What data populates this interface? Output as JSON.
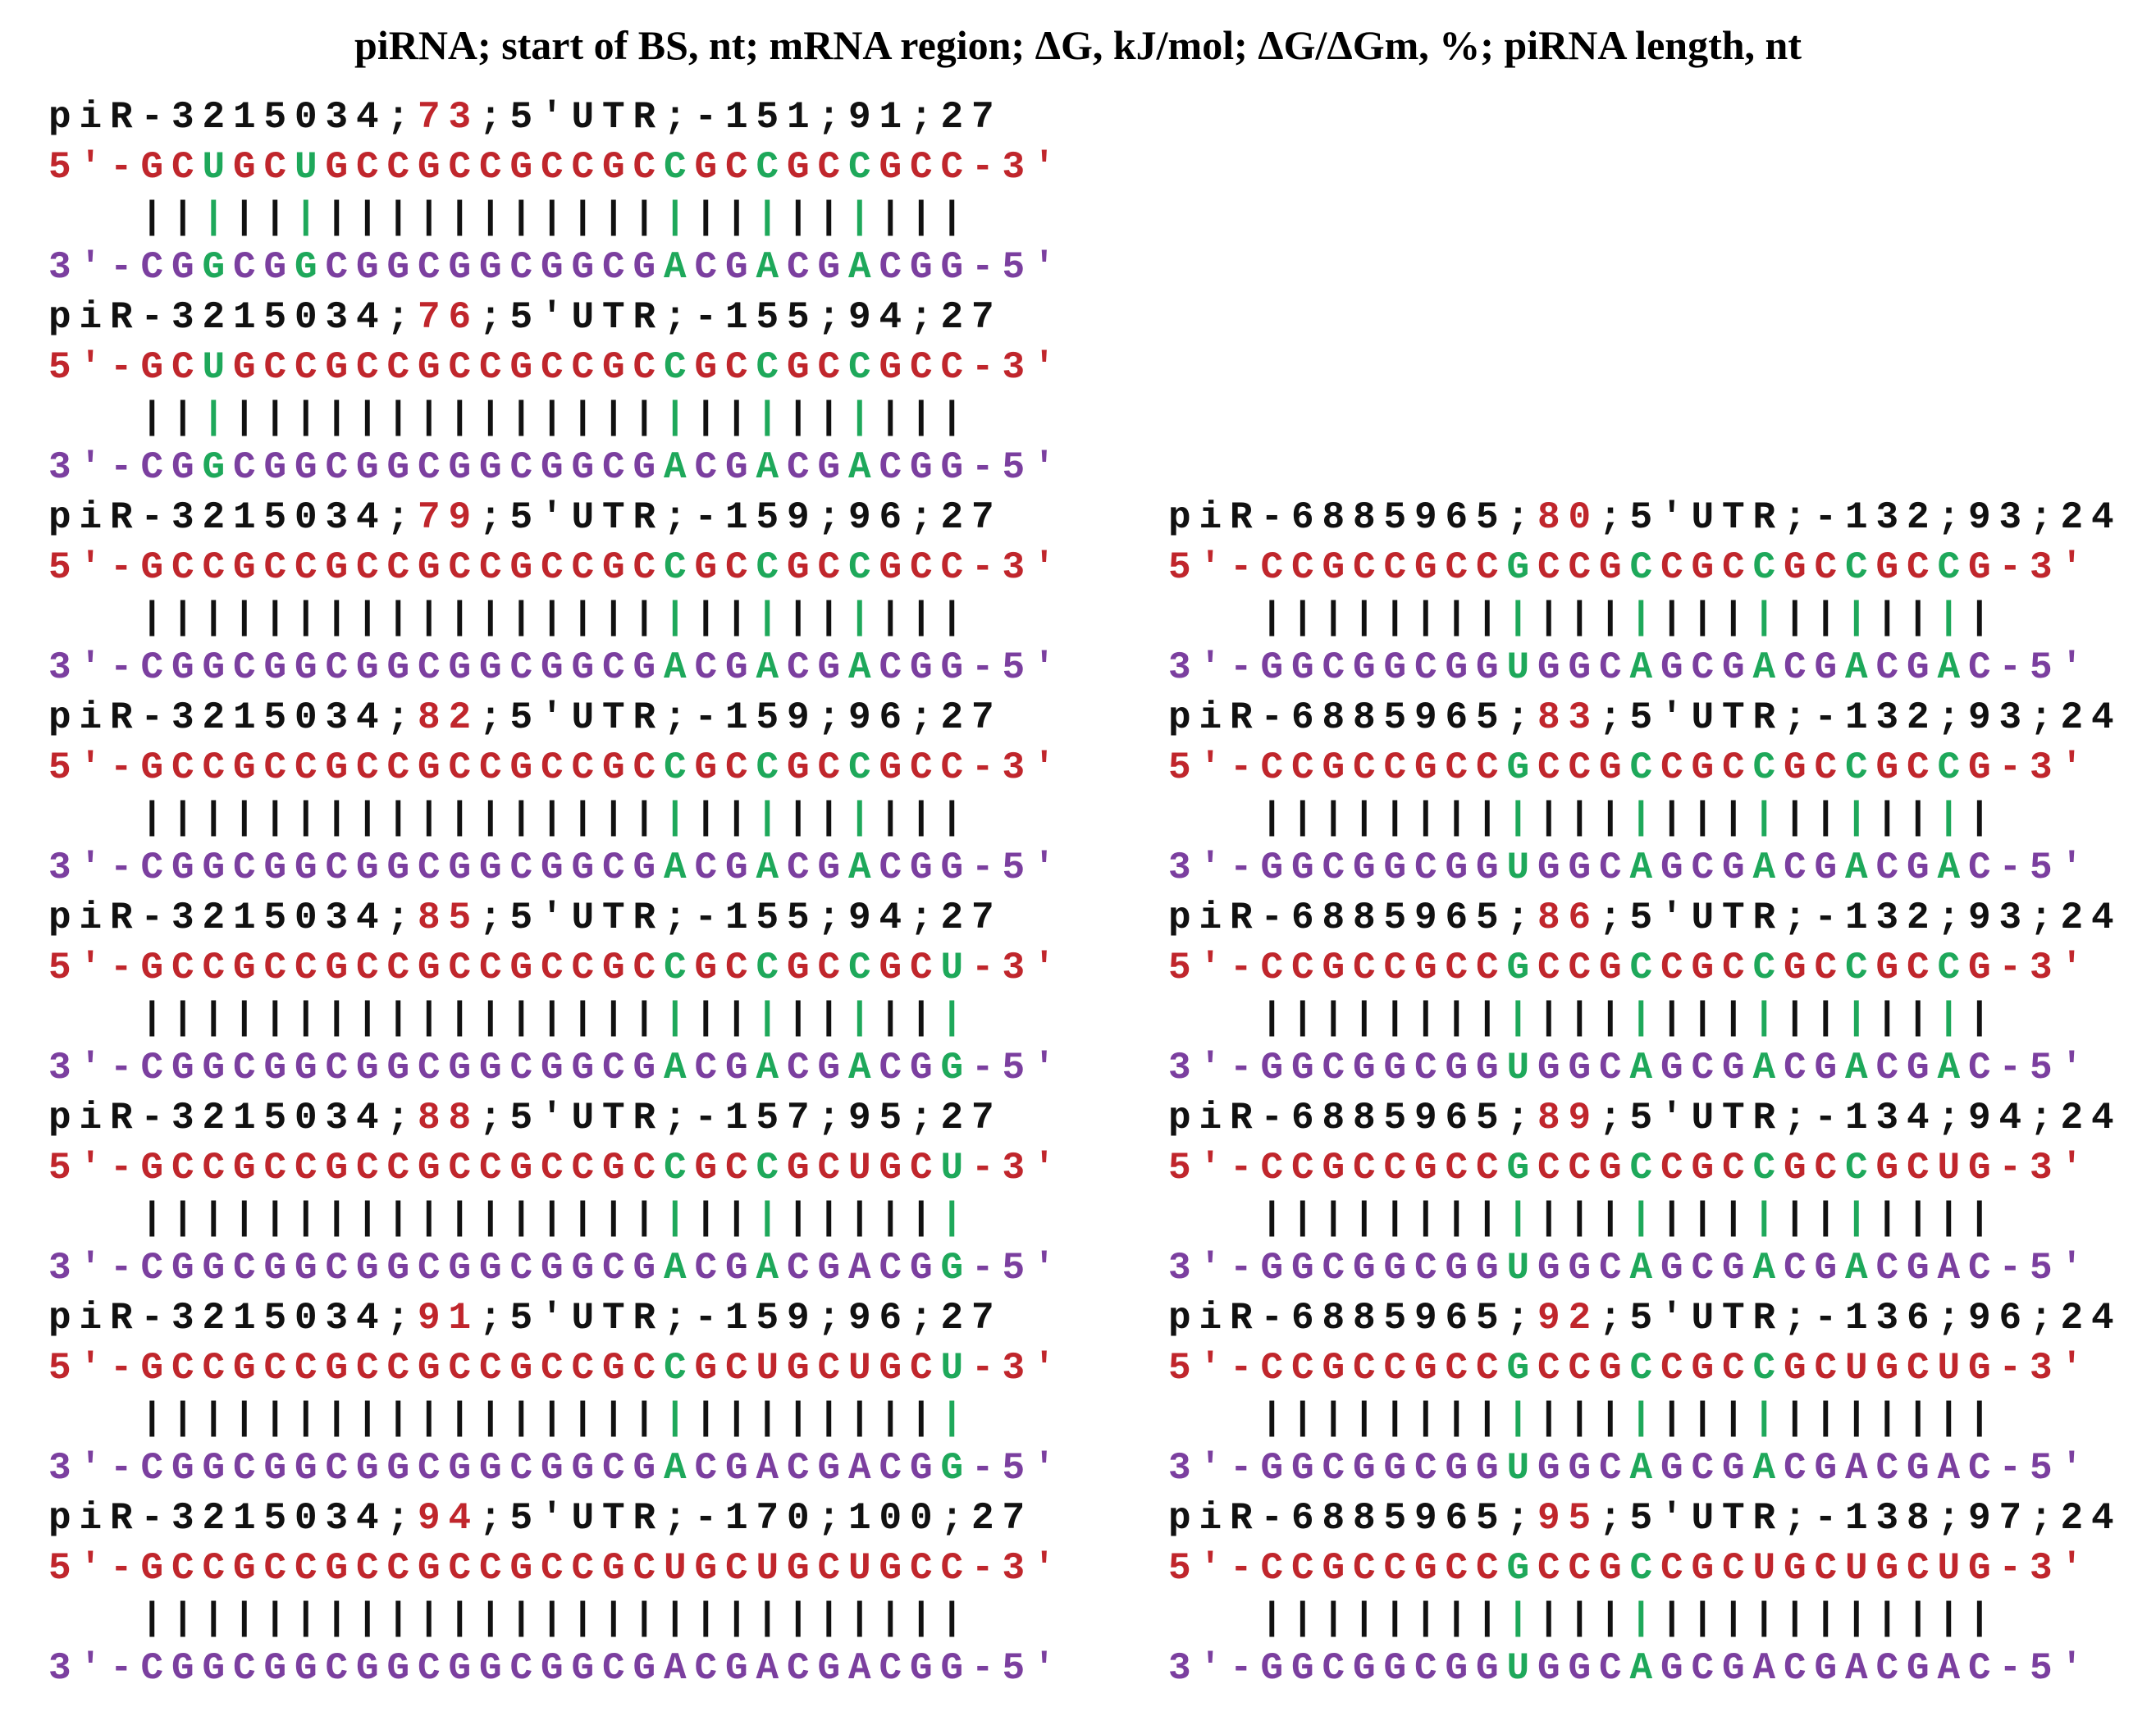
{
  "title": "piRNA; start of BS, nt; mRNA region; ΔG, kJ/mol; ΔG/ΔGm, %; piRNA length, nt",
  "columns": [
    [
      {
        "header": "piR-3215034;73;5'UTR;-151;91;27",
        "mrna": "5'-GCUGCUGCCGCCGCCGCCGCCGCCGCC-3'",
        "pairing": "|||||||||||||||||||||||||||",
        "pirna": "3'-CGGCGGCGGCGGCGGCGACGACGACGG-5'"
      },
      {
        "header": "piR-3215034;76;5'UTR;-155;94;27",
        "mrna": "5'-GCUGCCGCCGCCGCCGCCGCCGCCGCC-3'",
        "pairing": "|||||||||||||||||||||||||||",
        "pirna": "3'-CGGCGGCGGCGGCGGCGACGACGACGG-5'"
      },
      {
        "header": "piR-3215034;79;5'UTR;-159;96;27",
        "mrna": "5'-GCCGCCGCCGCCGCCGCCGCCGCCGCC-3'",
        "pairing": "|||||||||||||||||||||||||||",
        "pirna": "3'-CGGCGGCGGCGGCGGCGACGACGACGG-5'"
      },
      {
        "header": "piR-3215034;82;5'UTR;-159;96;27",
        "mrna": "5'-GCCGCCGCCGCCGCCGCCGCCGCCGCC-3'",
        "pairing": "|||||||||||||||||||||||||||",
        "pirna": "3'-CGGCGGCGGCGGCGGCGACGACGACGG-5'"
      },
      {
        "header": "piR-3215034;85;5'UTR;-155;94;27",
        "mrna": "5'-GCCGCCGCCGCCGCCGCCGCCGCCGCU-3'",
        "pairing": "|||||||||||||||||||||||||||",
        "pirna": "3'-CGGCGGCGGCGGCGGCGACGACGACGG-5'"
      },
      {
        "header": "piR-3215034;88;5'UTR;-157;95;27",
        "mrna": "5'-GCCGCCGCCGCCGCCGCCGCCGCUGCU-3'",
        "pairing": "|||||||||||||||||||||||||||",
        "pirna": "3'-CGGCGGCGGCGGCGGCGACGACGACGG-5'"
      },
      {
        "header": "piR-3215034;91;5'UTR;-159;96;27",
        "mrna": "5'-GCCGCCGCCGCCGCCGCCGCUGCUGCU-3'",
        "pairing": "|||||||||||||||||||||||||||",
        "pirna": "3'-CGGCGGCGGCGGCGGCGACGACGACGG-5'"
      },
      {
        "header": "piR-3215034;94;5'UTR;-170;100;27",
        "mrna": "5'-GCCGCCGCCGCCGCCGCUGCUGCUGCC-3'",
        "pairing": "|||||||||||||||||||||||||||",
        "pirna": "3'-CGGCGGCGGCGGCGGCGACGACGACGG-5'"
      }
    ],
    [
      {
        "header": "piR-6885965;80;5'UTR;-132;93;24",
        "mrna": "5'-CCGCCGCCGCCGCCGCCGCCGCCG-3'",
        "pairing": "||||||||||||||||||||||||",
        "pirna": "3'-GGCGGCGGUGGCAGCGACGACGAC-5'"
      },
      {
        "header": "piR-6885965;83;5'UTR;-132;93;24",
        "mrna": "5'-CCGCCGCCGCCGCCGCCGCCGCCG-3'",
        "pairing": "||||||||||||||||||||||||",
        "pirna": "3'-GGCGGCGGUGGCAGCGACGACGAC-5'"
      },
      {
        "header": "piR-6885965;86;5'UTR;-132;93;24",
        "mrna": "5'-CCGCCGCCGCCGCCGCCGCCGCCG-3'",
        "pairing": "||||||||||||||||||||||||",
        "pirna": "3'-GGCGGCGGUGGCAGCGACGACGAC-5'"
      },
      {
        "header": "piR-6885965;89;5'UTR;-134;94;24",
        "mrna": "5'-CCGCCGCCGCCGCCGCCGCCGCUG-3'",
        "pairing": "||||||||||||||||||||||||",
        "pirna": "3'-GGCGGCGGUGGCAGCGACGACGAC-5'"
      },
      {
        "header": "piR-6885965;92;5'UTR;-136;96;24",
        "mrna": "5'-CCGCCGCCGCCGCCGCCGCUGCUG-3'",
        "pairing": "||||||||||||||||||||||||",
        "pirna": "3'-GGCGGCGGUGGCAGCGACGACGAC-5'"
      },
      {
        "header": "piR-6885965;95;5'UTR;-138;97;24",
        "mrna": "5'-CCGCCGCCGCCGCCGCUGCUGCUG-3'",
        "pairing": "||||||||||||||||||||||||",
        "pirna": "3'-GGCGGCGGUGGCAGCGACGACGAC-5'"
      }
    ]
  ]
}
